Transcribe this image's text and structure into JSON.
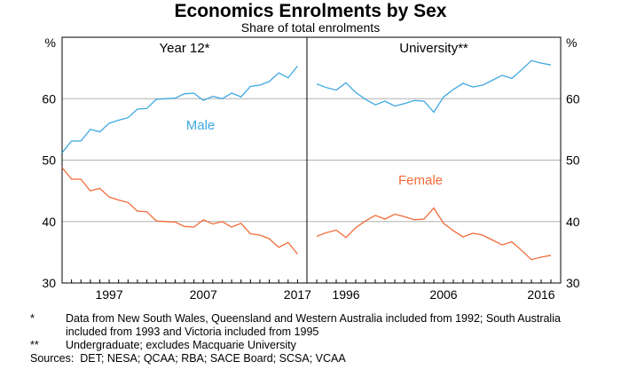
{
  "chart_data": {
    "type": "line",
    "title": "Economics Enrolments by Sex",
    "subtitle": "Share of total enrolments",
    "y_unit_left": "%",
    "y_unit_right": "%",
    "ylim": [
      30,
      70
    ],
    "yticks": [
      30,
      40,
      50,
      60
    ],
    "grid": true,
    "colors": {
      "Male": "#3ea8e0",
      "Female": "#f26b3a"
    },
    "panels": [
      {
        "title": "Year 12*",
        "x_range": [
          1992,
          2018
        ],
        "xticks": [
          1997,
          2007,
          2017
        ],
        "series": [
          {
            "name": "Male",
            "x": [
              1992,
              1993,
              1994,
              1995,
              1996,
              1997,
              1998,
              1999,
              2000,
              2001,
              2002,
              2003,
              2004,
              2005,
              2006,
              2007,
              2008,
              2009,
              2010,
              2011,
              2012,
              2013,
              2014,
              2015,
              2016,
              2017
            ],
            "y": [
              51.2,
              53.1,
              53.1,
              55.0,
              54.6,
              56.0,
              56.5,
              56.9,
              58.3,
              58.4,
              59.9,
              60.0,
              60.1,
              60.8,
              60.9,
              59.7,
              60.4,
              60.0,
              60.9,
              60.3,
              62.0,
              62.2,
              62.8,
              64.2,
              63.4,
              65.3
            ]
          },
          {
            "name": "Female",
            "x": [
              1992,
              1993,
              1994,
              1995,
              1996,
              1997,
              1998,
              1999,
              2000,
              2001,
              2002,
              2003,
              2004,
              2005,
              2006,
              2007,
              2008,
              2009,
              2010,
              2011,
              2012,
              2013,
              2014,
              2015,
              2016,
              2017
            ],
            "y": [
              48.8,
              46.9,
              46.9,
              45.0,
              45.4,
              44.0,
              43.5,
              43.1,
              41.7,
              41.6,
              40.1,
              40.0,
              39.9,
              39.2,
              39.1,
              40.3,
              39.6,
              40.0,
              39.1,
              39.7,
              38.0,
              37.8,
              37.2,
              35.8,
              36.6,
              34.7
            ]
          }
        ],
        "labels": [
          "Male"
        ]
      },
      {
        "title": "University**",
        "x_range": [
          1992,
          2018
        ],
        "xticks": [
          1996,
          2006,
          2016
        ],
        "series": [
          {
            "name": "Male",
            "x": [
              1993,
              1994,
              1995,
              1996,
              1997,
              1998,
              1999,
              2000,
              2001,
              2002,
              2003,
              2004,
              2005,
              2006,
              2007,
              2008,
              2009,
              2010,
              2011,
              2012,
              2013,
              2014,
              2015,
              2016,
              2017
            ],
            "y": [
              62.4,
              61.8,
              61.4,
              62.6,
              61.0,
              59.9,
              59.0,
              59.6,
              58.8,
              59.2,
              59.7,
              59.6,
              57.8,
              60.3,
              61.5,
              62.5,
              61.9,
              62.2,
              63.0,
              63.8,
              63.3,
              64.7,
              66.2,
              65.8,
              65.5
            ]
          },
          {
            "name": "Female",
            "x": [
              1993,
              1994,
              1995,
              1996,
              1997,
              1998,
              1999,
              2000,
              2001,
              2002,
              2003,
              2004,
              2005,
              2006,
              2007,
              2008,
              2009,
              2010,
              2011,
              2012,
              2013,
              2014,
              2015,
              2016,
              2017
            ],
            "y": [
              37.6,
              38.2,
              38.6,
              37.4,
              39.0,
              40.1,
              41.0,
              40.4,
              41.2,
              40.8,
              40.3,
              40.4,
              42.2,
              39.7,
              38.5,
              37.5,
              38.1,
              37.8,
              37.0,
              36.2,
              36.7,
              35.3,
              33.8,
              34.2,
              34.5
            ]
          }
        ],
        "labels": [
          "Female"
        ]
      }
    ]
  },
  "notes": [
    {
      "marker": "*",
      "text": "Data from New South Wales, Queensland and Western Australia included from 1992; South Australia included from 1993 and Victoria included from 1995"
    },
    {
      "marker": "**",
      "text": "Undergraduate; excludes Macquarie University"
    }
  ],
  "sources": "Sources:  DET; NESA; QCAA; RBA; SACE Board; SCSA; VCAA"
}
